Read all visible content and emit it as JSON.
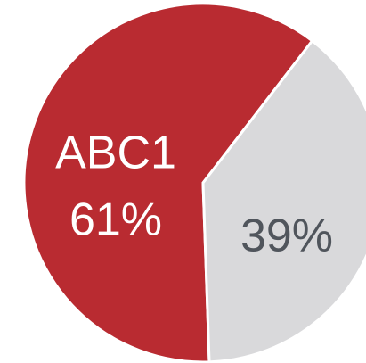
{
  "chart_data": {
    "type": "pie",
    "categories": [
      "ABC1",
      null
    ],
    "values": [
      61,
      39
    ],
    "value_labels": [
      "61%",
      "39%"
    ],
    "colors": [
      "#b92b31",
      "#d9d9db"
    ],
    "label_colors": [
      "#ffffff",
      "#50555c"
    ]
  }
}
